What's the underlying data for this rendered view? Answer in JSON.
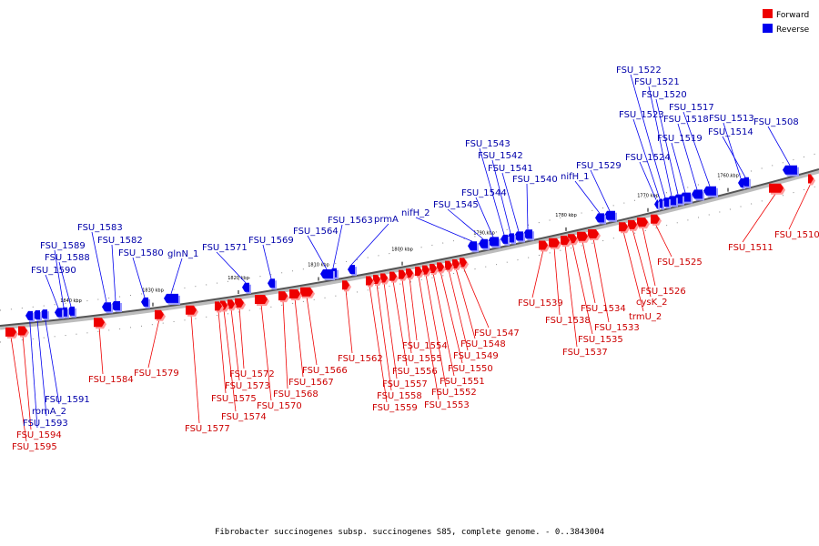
{
  "legend": {
    "forward_label": "Forward",
    "reverse_label": "Reverse",
    "forward_color": "#ee0000",
    "reverse_color": "#0000ee"
  },
  "caption": "Fibrobacter succinogenes subsp. succinogenes S85, complete genome. - 0..3843004",
  "ticks": [
    "1760 kbp",
    "1770 kbp",
    "1780 kbp",
    "1790 kbp",
    "1800 kbp",
    "1810 kbp",
    "1820 kbp",
    "1830 kbp",
    "1840 kbp"
  ],
  "genes": [
    {
      "name": "FSU_1508",
      "strand": "reverse"
    },
    {
      "name": "FSU_1510",
      "strand": "forward"
    },
    {
      "name": "FSU_1511",
      "strand": "forward"
    },
    {
      "name": "FSU_1513",
      "strand": "reverse"
    },
    {
      "name": "FSU_1514",
      "strand": "reverse"
    },
    {
      "name": "FSU_1517",
      "strand": "reverse"
    },
    {
      "name": "FSU_1518",
      "strand": "reverse"
    },
    {
      "name": "FSU_1519",
      "strand": "reverse"
    },
    {
      "name": "FSU_1520",
      "strand": "reverse"
    },
    {
      "name": "FSU_1521",
      "strand": "reverse"
    },
    {
      "name": "FSU_1522",
      "strand": "reverse"
    },
    {
      "name": "FSU_1523",
      "strand": "reverse"
    },
    {
      "name": "FSU_1524",
      "strand": "reverse"
    },
    {
      "name": "FSU_1525",
      "strand": "forward"
    },
    {
      "name": "FSU_1526",
      "strand": "forward"
    },
    {
      "name": "cysK_2",
      "strand": "forward"
    },
    {
      "name": "trmU_2",
      "strand": "forward"
    },
    {
      "name": "FSU_1529",
      "strand": "reverse"
    },
    {
      "name": "nifH_1",
      "strand": "reverse"
    },
    {
      "name": "FSU_1533",
      "strand": "forward"
    },
    {
      "name": "FSU_1534",
      "strand": "forward"
    },
    {
      "name": "FSU_1535",
      "strand": "forward"
    },
    {
      "name": "FSU_1537",
      "strand": "forward"
    },
    {
      "name": "FSU_1538",
      "strand": "forward"
    },
    {
      "name": "FSU_1539",
      "strand": "forward"
    },
    {
      "name": "FSU_1540",
      "strand": "reverse"
    },
    {
      "name": "FSU_1541",
      "strand": "reverse"
    },
    {
      "name": "FSU_1542",
      "strand": "reverse"
    },
    {
      "name": "FSU_1543",
      "strand": "reverse"
    },
    {
      "name": "FSU_1544",
      "strand": "reverse"
    },
    {
      "name": "FSU_1545",
      "strand": "reverse"
    },
    {
      "name": "nifH_2",
      "strand": "reverse"
    },
    {
      "name": "FSU_1547",
      "strand": "forward"
    },
    {
      "name": "FSU_1548",
      "strand": "forward"
    },
    {
      "name": "FSU_1549",
      "strand": "forward"
    },
    {
      "name": "FSU_1550",
      "strand": "forward"
    },
    {
      "name": "FSU_1551",
      "strand": "forward"
    },
    {
      "name": "FSU_1552",
      "strand": "forward"
    },
    {
      "name": "FSU_1553",
      "strand": "forward"
    },
    {
      "name": "FSU_1554",
      "strand": "forward"
    },
    {
      "name": "FSU_1555",
      "strand": "forward"
    },
    {
      "name": "FSU_1556",
      "strand": "forward"
    },
    {
      "name": "FSU_1557",
      "strand": "forward"
    },
    {
      "name": "FSU_1558",
      "strand": "forward"
    },
    {
      "name": "FSU_1559",
      "strand": "forward"
    },
    {
      "name": "FSU_1562",
      "strand": "forward"
    },
    {
      "name": "prmA",
      "strand": "reverse"
    },
    {
      "name": "FSU_1563",
      "strand": "reverse"
    },
    {
      "name": "FSU_1564",
      "strand": "reverse"
    },
    {
      "name": "FSU_1566",
      "strand": "forward"
    },
    {
      "name": "FSU_1567",
      "strand": "forward"
    },
    {
      "name": "FSU_1568",
      "strand": "forward"
    },
    {
      "name": "FSU_1569",
      "strand": "reverse"
    },
    {
      "name": "FSU_1570",
      "strand": "forward"
    },
    {
      "name": "FSU_1571",
      "strand": "reverse"
    },
    {
      "name": "FSU_1572",
      "strand": "forward"
    },
    {
      "name": "FSU_1573",
      "strand": "forward"
    },
    {
      "name": "FSU_1574",
      "strand": "forward"
    },
    {
      "name": "FSU_1575",
      "strand": "forward"
    },
    {
      "name": "FSU_1577",
      "strand": "forward"
    },
    {
      "name": "glnN_1",
      "strand": "reverse"
    },
    {
      "name": "FSU_1579",
      "strand": "forward"
    },
    {
      "name": "FSU_1580",
      "strand": "reverse"
    },
    {
      "name": "FSU_1582",
      "strand": "reverse"
    },
    {
      "name": "FSU_1583",
      "strand": "reverse"
    },
    {
      "name": "FSU_1584",
      "strand": "forward"
    },
    {
      "name": "FSU_1588",
      "strand": "reverse"
    },
    {
      "name": "FSU_1589",
      "strand": "reverse"
    },
    {
      "name": "FSU_1590",
      "strand": "reverse"
    },
    {
      "name": "FSU_1591",
      "strand": "reverse"
    },
    {
      "name": "romA_2",
      "strand": "reverse"
    },
    {
      "name": "FSU_1593",
      "strand": "reverse"
    },
    {
      "name": "FSU_1594",
      "strand": "forward"
    },
    {
      "name": "FSU_1595",
      "strand": "forward"
    }
  ]
}
